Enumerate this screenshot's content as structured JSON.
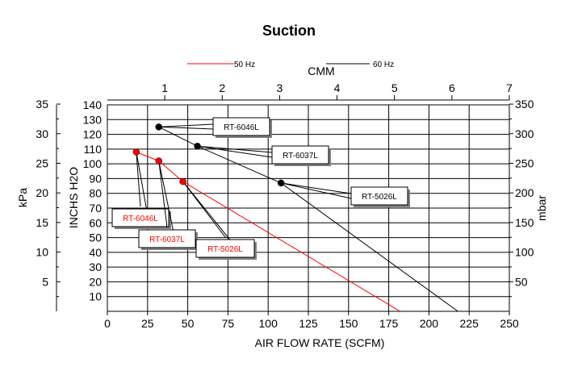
{
  "chart_data": {
    "type": "line",
    "title": "Suction",
    "xlabel": "AIR FLOW RATE (SCFM)",
    "x2label": "CMM",
    "ylabel": "INCHS H2O",
    "ylabel_left": "kPa",
    "ylabel_right": "mbar",
    "xlim": [
      0,
      250
    ],
    "ylim": [
      0,
      140
    ],
    "x2lim": [
      0,
      7
    ],
    "x_ticks": [
      "0",
      "25",
      "50",
      "75",
      "100",
      "125",
      "150",
      "175",
      "200",
      "225",
      "250"
    ],
    "x2_ticks": [
      "1",
      "2",
      "3",
      "4",
      "5",
      "6",
      "7"
    ],
    "y_ticks": [
      "10",
      "20",
      "30",
      "40",
      "50",
      "60",
      "70",
      "80",
      "90",
      "100",
      "110",
      "120",
      "130",
      "140"
    ],
    "kpa_ticks": [
      "5",
      "10",
      "15",
      "20",
      "25",
      "30",
      "35"
    ],
    "mbar_ticks": [
      "50",
      "100",
      "150",
      "200",
      "250",
      "300",
      "350"
    ],
    "grid": true,
    "legend_position": "top",
    "series": [
      {
        "name": "50 Hz",
        "color": "#ff0000",
        "x": [
          18,
          32,
          47,
          182
        ],
        "y": [
          108,
          102,
          88,
          0
        ]
      },
      {
        "name": "60 Hz",
        "color": "#000000",
        "x": [
          32,
          56,
          108,
          218
        ],
        "y": [
          125,
          112,
          87,
          0
        ]
      }
    ],
    "annotations": [
      {
        "series": "60 Hz",
        "label": "RT-6046L",
        "x": 32,
        "y": 125,
        "color": "#000000"
      },
      {
        "series": "60 Hz",
        "label": "RT-6037L",
        "x": 56,
        "y": 112,
        "color": "#000000"
      },
      {
        "series": "60 Hz",
        "label": "RT-5026L",
        "x": 108,
        "y": 87,
        "color": "#000000"
      },
      {
        "series": "50 Hz",
        "label": "RT-6046L",
        "x": 18,
        "y": 108,
        "color": "#ff0000"
      },
      {
        "series": "50 Hz",
        "label": "RT-6037L",
        "x": 32,
        "y": 102,
        "color": "#ff0000"
      },
      {
        "series": "50 Hz",
        "label": "RT-5026L",
        "x": 47,
        "y": 88,
        "color": "#ff0000"
      }
    ]
  }
}
